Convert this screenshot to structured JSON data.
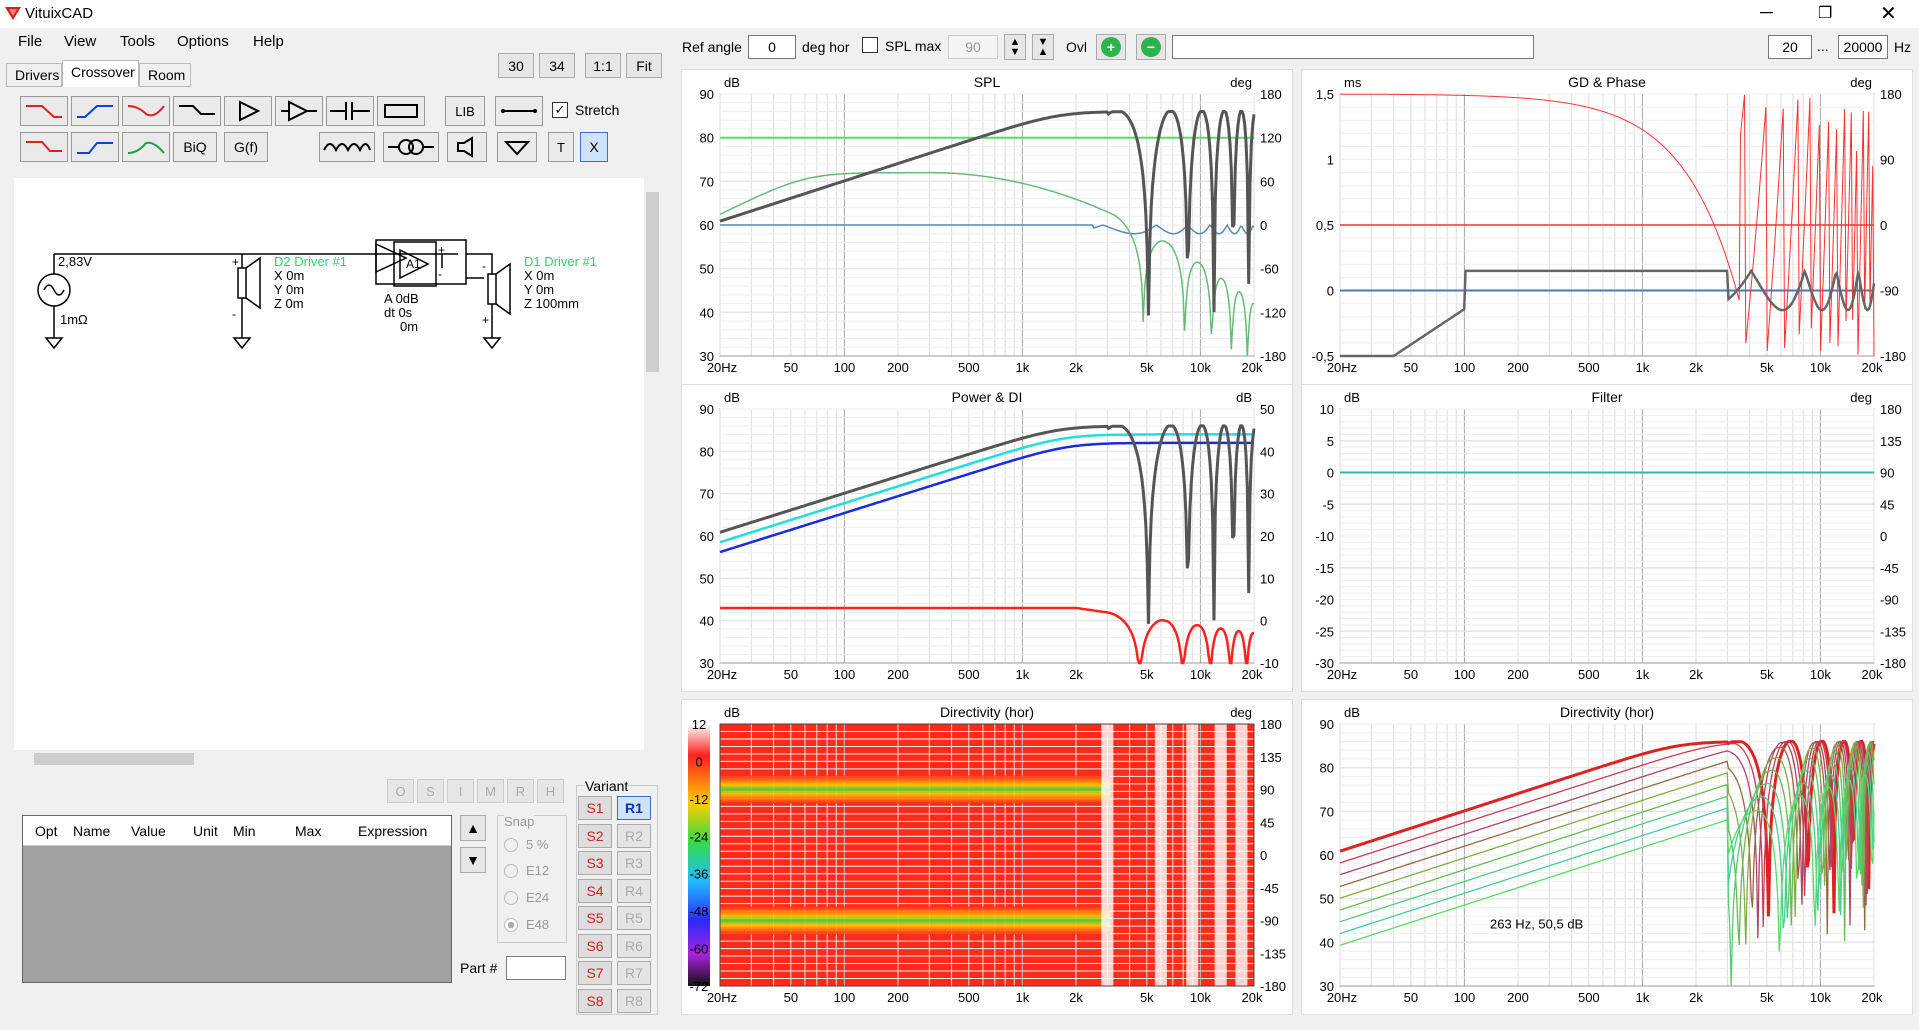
{
  "window": {
    "title": "VituixCAD"
  },
  "menu": [
    "File",
    "View",
    "Tools",
    "Options",
    "Help"
  ],
  "tabs": [
    "Drivers",
    "Crossover",
    "Room"
  ],
  "active_tab": "Crossover",
  "zoom_buttons": [
    "30",
    "34",
    "1:1",
    "Fit"
  ],
  "toolbar": {
    "lib_label": "LIB",
    "biq_label": "BiQ",
    "gf_label": "G(f)",
    "t_label": "T",
    "x_label": "X",
    "stretch_label": "Stretch",
    "stretch_checked": true
  },
  "schematic": {
    "source_voltage": "2,83V",
    "source_impedance": "1mΩ",
    "driver2": {
      "name": "D2 Driver #1",
      "x": "X 0m",
      "y": "Y 0m",
      "z": "Z 0m"
    },
    "amp": {
      "label": "A1",
      "a": "A  0dB",
      "dt": "dt 0s",
      "z": "0m"
    },
    "driver1": {
      "name": "D1 Driver #1",
      "x": "X 0m",
      "y": "Y 0m",
      "z": "Z 100mm"
    }
  },
  "opt_buttons": [
    "O",
    "S",
    "I",
    "M",
    "R",
    "H"
  ],
  "table": {
    "columns": [
      "Opt",
      "Name",
      "Value",
      "Unit",
      "Min",
      "Max",
      "Expression"
    ]
  },
  "snap": {
    "label": "Snap",
    "options": [
      "5 %",
      "E12",
      "E24",
      "E48"
    ],
    "selected": "E48"
  },
  "part_label": "Part #",
  "variant": {
    "label": "Variant",
    "s": [
      "S1",
      "S2",
      "S3",
      "S4",
      "S5",
      "S6",
      "S7",
      "S8"
    ],
    "r": [
      "R1",
      "R2",
      "R3",
      "R4",
      "R5",
      "R6",
      "R7",
      "R8"
    ],
    "selected_r": "R1"
  },
  "top_controls": {
    "ref_angle_label": "Ref angle",
    "ref_angle_value": "0",
    "deg_hor_label": "deg hor",
    "spl_max_label": "SPL max",
    "spl_max_checked": false,
    "spl_max_value": "90",
    "ovl_label": "Ovl",
    "freq_from": "20",
    "freq_sep": "...",
    "freq_to": "20000",
    "hz_label": "Hz"
  },
  "freq_ticks": [
    "20Hz",
    "50",
    "100",
    "200",
    "500",
    "1k",
    "2k",
    "5k",
    "10k",
    "20k"
  ],
  "charts": {
    "spl": {
      "title": "SPL",
      "left_unit": "dB",
      "right_unit": "deg",
      "left_ticks": [
        "90",
        "80",
        "70",
        "60",
        "50",
        "40",
        "30"
      ],
      "right_ticks": [
        "180",
        "120",
        "60",
        "0",
        "-60",
        "-120",
        "-180"
      ]
    },
    "gd": {
      "title": "GD & Phase",
      "left_unit": "ms",
      "right_unit": "deg",
      "left_ticks": [
        "1,5",
        "1",
        "0,5",
        "0",
        "-0,5"
      ],
      "right_ticks": [
        "180",
        "90",
        "0",
        "-90",
        "-180"
      ]
    },
    "power": {
      "title": "Power & DI",
      "left_unit": "dB",
      "right_unit": "dB",
      "left_ticks": [
        "90",
        "80",
        "70",
        "60",
        "50",
        "40",
        "30"
      ],
      "right_ticks": [
        "50",
        "40",
        "30",
        "20",
        "10",
        "0",
        "-10"
      ]
    },
    "filter": {
      "title": "Filter",
      "left_unit": "dB",
      "right_unit": "deg",
      "left_ticks": [
        "10",
        "5",
        "0",
        "-5",
        "-10",
        "-15",
        "-20",
        "-25",
        "-30"
      ],
      "right_ticks": [
        "180",
        "135",
        "90",
        "45",
        "0",
        "-45",
        "-90",
        "-135",
        "-180"
      ]
    },
    "dir_map": {
      "title": "Directivity (hor)",
      "left_unit": "dB",
      "right_unit": "deg",
      "scale_ticks": [
        "12",
        "0",
        "-12",
        "-24",
        "-36",
        "-48",
        "-60",
        "-72"
      ],
      "right_ticks": [
        "180",
        "135",
        "90",
        "45",
        "0",
        "-45",
        "-90",
        "-135",
        "-180"
      ]
    },
    "dir_lines": {
      "title": "Directivity (hor)",
      "left_unit": "dB",
      "left_ticks": [
        "90",
        "80",
        "70",
        "60",
        "50",
        "40",
        "30"
      ],
      "annotation": "263 Hz, 50,5 dB"
    }
  },
  "colors": {
    "accent_green": "#2db34a",
    "selected_blue": "#0a33c0",
    "spl_gray": "#555555",
    "phase_red": "#ff3030"
  }
}
